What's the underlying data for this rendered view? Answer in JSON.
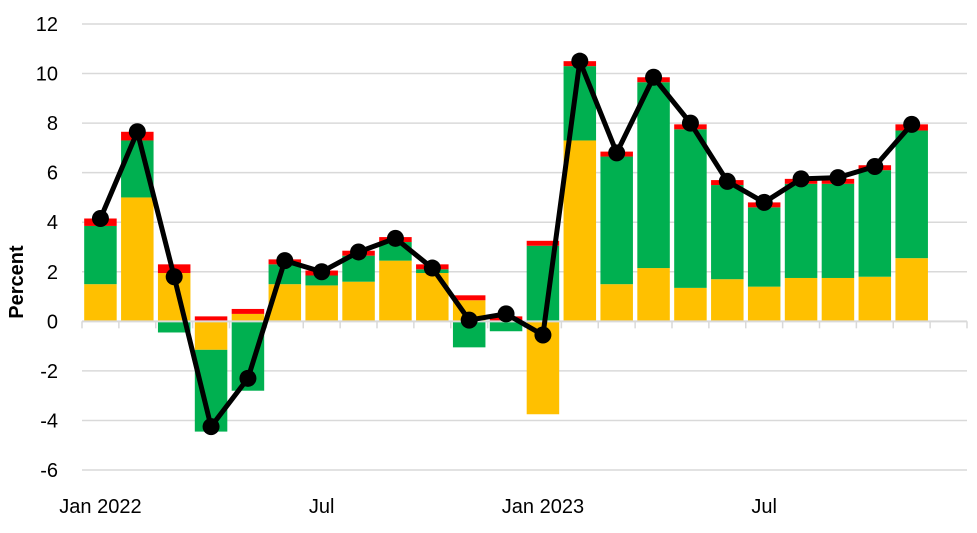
{
  "chart_data": {
    "type": "bar",
    "stacked": true,
    "ylabel": "Percent",
    "ylim": [
      -6,
      12
    ],
    "yticks": [
      -6,
      -4,
      -2,
      0,
      2,
      4,
      6,
      8,
      10,
      12
    ],
    "grid": "horizontal",
    "x_tick_labels": [
      {
        "index": 0,
        "label": "Jan 2022"
      },
      {
        "index": 6,
        "label": "Jul"
      },
      {
        "index": 12,
        "label": "Jan 2023"
      },
      {
        "index": 18,
        "label": "Jul"
      }
    ],
    "months": [
      "2022-01",
      "2022-02",
      "2022-03",
      "2022-04",
      "2022-05",
      "2022-06",
      "2022-07",
      "2022-08",
      "2022-09",
      "2022-10",
      "2022-11",
      "2022-12",
      "2023-01",
      "2023-02",
      "2023-03",
      "2023-04",
      "2023-05",
      "2023-06",
      "2023-07",
      "2023-08",
      "2023-09",
      "2023-10",
      "2023-11",
      "2023-12"
    ],
    "series": [
      {
        "color": "#FFC000",
        "values": [
          1.5,
          5.0,
          1.95,
          -1.15,
          0.3,
          1.5,
          1.45,
          1.6,
          2.45,
          1.95,
          0.85,
          0.0,
          -3.75,
          7.3,
          1.5,
          2.15,
          1.35,
          1.7,
          1.4,
          1.75,
          1.75,
          1.8,
          2.55,
          0.0
        ]
      },
      {
        "color": "#00B050",
        "values": [
          2.35,
          2.3,
          -0.45,
          -3.3,
          -2.8,
          0.8,
          0.4,
          1.05,
          0.75,
          0.15,
          -1.05,
          -0.4,
          3.05,
          3.0,
          5.15,
          7.5,
          6.4,
          3.8,
          3.2,
          3.8,
          3.8,
          4.3,
          5.15,
          0.0
        ]
      },
      {
        "color": "#FF0000",
        "values": [
          0.3,
          0.35,
          0.35,
          0.2,
          0.2,
          0.2,
          0.2,
          0.2,
          0.2,
          0.2,
          0.2,
          0.2,
          0.2,
          0.2,
          0.2,
          0.2,
          0.2,
          0.2,
          0.2,
          0.2,
          0.2,
          0.2,
          0.25,
          0.0
        ]
      },
      {
        "type": "line",
        "color": "#000000",
        "values": [
          4.15,
          7.65,
          1.8,
          -4.25,
          -2.3,
          2.45,
          2.0,
          2.8,
          3.35,
          2.15,
          0.05,
          0.3,
          -0.55,
          10.5,
          6.8,
          9.85,
          8.0,
          5.65,
          4.8,
          5.75,
          5.8,
          6.25,
          7.95,
          null
        ]
      }
    ]
  }
}
